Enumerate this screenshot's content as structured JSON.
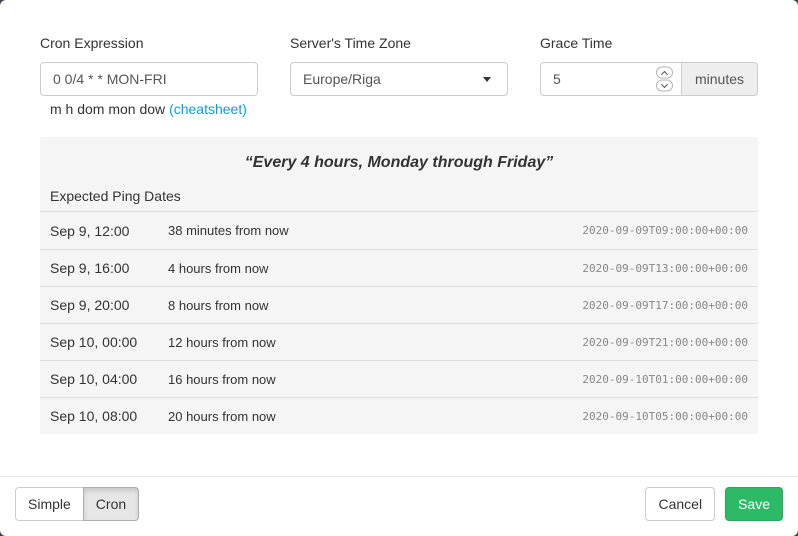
{
  "form": {
    "cron": {
      "label": "Cron Expression",
      "value": "0 0/4 * * MON-FRI",
      "help_text": "m h dom mon dow",
      "help_link": "(cheatsheet)"
    },
    "timezone": {
      "label": "Server's Time Zone",
      "value": "Europe/Riga"
    },
    "grace": {
      "label": "Grace Time",
      "value": "5",
      "unit": "minutes"
    }
  },
  "preview": {
    "title": "“Every 4 hours, Monday through Friday”",
    "header": "Expected Ping Dates",
    "rows": [
      {
        "date": "Sep 9, 12:00",
        "relative": "38 minutes from now",
        "iso": "2020-09-09T09:00:00+00:00"
      },
      {
        "date": "Sep 9, 16:00",
        "relative": "4 hours from now",
        "iso": "2020-09-09T13:00:00+00:00"
      },
      {
        "date": "Sep 9, 20:00",
        "relative": "8 hours from now",
        "iso": "2020-09-09T17:00:00+00:00"
      },
      {
        "date": "Sep 10, 00:00",
        "relative": "12 hours from now",
        "iso": "2020-09-09T21:00:00+00:00"
      },
      {
        "date": "Sep 10, 04:00",
        "relative": "16 hours from now",
        "iso": "2020-09-10T01:00:00+00:00"
      },
      {
        "date": "Sep 10, 08:00",
        "relative": "20 hours from now",
        "iso": "2020-09-10T05:00:00+00:00"
      }
    ]
  },
  "footer": {
    "mode_simple": "Simple",
    "mode_cron": "Cron",
    "cancel": "Cancel",
    "save": "Save"
  },
  "colors": {
    "save_green": "#2cba67",
    "link_blue": "#0b9be3",
    "panel_gray": "#f5f5f5",
    "active_toggle_gray": "#e6e6e6"
  }
}
